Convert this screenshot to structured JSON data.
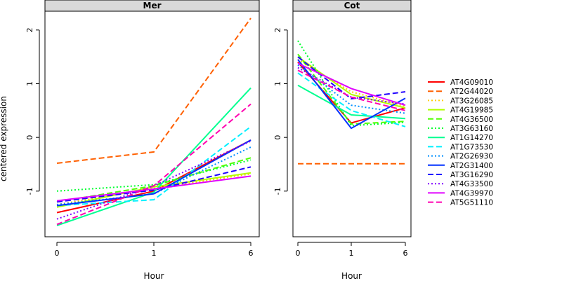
{
  "chart_data": {
    "type": "line",
    "ylabel": "centered expression",
    "xlabel": "Hour",
    "x_categories": [
      "0",
      "1",
      "6"
    ],
    "ylim": [
      -1.85,
      2.35
    ],
    "yticks": [
      -1,
      0,
      1,
      2
    ],
    "legend_position": "right",
    "series": [
      {
        "name": "AT4G09010",
        "color": "#ff0000",
        "dash": "solid"
      },
      {
        "name": "AT2G44020",
        "color": "#ff6000",
        "dash": "dashed"
      },
      {
        "name": "AT3G26085",
        "color": "#ffd000",
        "dash": "dotted"
      },
      {
        "name": "AT4G19985",
        "color": "#b0ff00",
        "dash": "solid"
      },
      {
        "name": "AT4G36500",
        "color": "#50ff00",
        "dash": "dashed"
      },
      {
        "name": "AT3G63160",
        "color": "#00ff30",
        "dash": "dotted"
      },
      {
        "name": "AT1G14270",
        "color": "#00ff90",
        "dash": "solid"
      },
      {
        "name": "AT1G73530",
        "color": "#00f0ff",
        "dash": "dashed"
      },
      {
        "name": "AT2G26930",
        "color": "#0090ff",
        "dash": "dotted"
      },
      {
        "name": "AT2G31400",
        "color": "#0030ff",
        "dash": "solid"
      },
      {
        "name": "AT3G16290",
        "color": "#2000ff",
        "dash": "dashed"
      },
      {
        "name": "AT4G33500",
        "color": "#8000ff",
        "dash": "dotted"
      },
      {
        "name": "AT4G39970",
        "color": "#e000ff",
        "dash": "solid"
      },
      {
        "name": "AT5G51110",
        "color": "#ff00b0",
        "dash": "dashed"
      }
    ],
    "panels": [
      {
        "title": "Mer",
        "values": [
          [
            -1.4,
            -1.0,
            -0.05
          ],
          [
            -0.48,
            -0.27,
            2.22
          ],
          [
            -1.25,
            -0.95,
            -0.68
          ],
          [
            -1.3,
            -0.92,
            -0.66
          ],
          [
            -1.2,
            -0.9,
            -0.38
          ],
          [
            -1.0,
            -0.88,
            -0.42
          ],
          [
            -1.64,
            -1.02,
            0.92
          ],
          [
            -1.27,
            -1.16,
            0.2
          ],
          [
            -1.25,
            -1.05,
            -0.18
          ],
          [
            -1.27,
            -1.05,
            -0.05
          ],
          [
            -1.2,
            -0.98,
            -0.55
          ],
          [
            -1.52,
            -0.9,
            -0.07
          ],
          [
            -1.18,
            -0.96,
            -0.72
          ],
          [
            -1.62,
            -0.9,
            0.62
          ]
        ]
      },
      {
        "title": "Cot",
        "values": [
          [
            1.4,
            0.27,
            0.55
          ],
          [
            -0.49,
            -0.49,
            -0.49
          ],
          [
            1.45,
            0.85,
            0.58
          ],
          [
            1.5,
            0.8,
            0.55
          ],
          [
            1.55,
            0.25,
            0.3
          ],
          [
            1.8,
            0.22,
            0.28
          ],
          [
            0.97,
            0.42,
            0.35
          ],
          [
            1.2,
            0.5,
            0.2
          ],
          [
            1.35,
            0.6,
            0.45
          ],
          [
            1.45,
            0.17,
            0.73
          ],
          [
            1.5,
            0.72,
            0.85
          ],
          [
            1.3,
            0.75,
            0.62
          ],
          [
            1.38,
            0.91,
            0.6
          ],
          [
            1.25,
            0.75,
            0.5
          ]
        ]
      }
    ]
  }
}
